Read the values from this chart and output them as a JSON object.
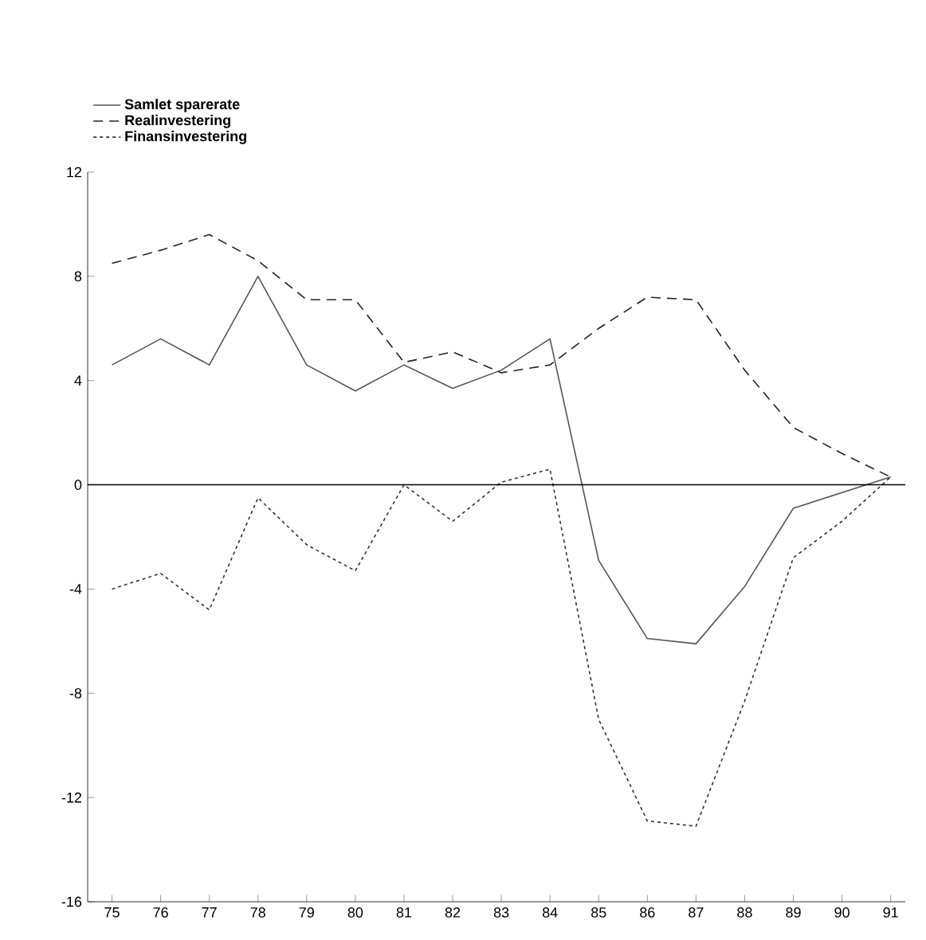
{
  "chart_data": {
    "type": "line",
    "categories": [
      "75",
      "76",
      "77",
      "78",
      "79",
      "80",
      "81",
      "82",
      "83",
      "84",
      "85",
      "86",
      "87",
      "88",
      "89",
      "90",
      "91"
    ],
    "series": [
      {
        "name": "Samlet sparerate",
        "color": "#555555",
        "line_style": "solid",
        "values": [
          4.6,
          5.6,
          4.6,
          8.0,
          4.6,
          3.6,
          4.6,
          3.7,
          4.4,
          5.6,
          -2.9,
          -5.9,
          -6.1,
          -3.9,
          -0.9,
          -0.3,
          0.3
        ]
      },
      {
        "name": "Realinvestering",
        "color": "#222222",
        "line_style": "dashed",
        "values": [
          8.5,
          9.0,
          9.6,
          8.6,
          7.1,
          7.1,
          4.7,
          5.1,
          4.3,
          4.6,
          6.0,
          7.2,
          7.1,
          4.4,
          2.2,
          1.2,
          0.3
        ]
      },
      {
        "name": "Finansinvestering",
        "color": "#333333",
        "line_style": "dotted",
        "values": [
          -4.0,
          -3.4,
          -4.8,
          -0.5,
          -2.3,
          -3.3,
          0.0,
          -1.4,
          0.1,
          0.6,
          -9.0,
          -12.9,
          -13.1,
          -8.3,
          -2.8,
          -1.4,
          0.3
        ]
      }
    ],
    "ylim": [
      -16,
      12
    ],
    "yticks": [
      -16,
      -12,
      -8,
      -4,
      0,
      4,
      8,
      12
    ],
    "ref_lines": [
      {
        "axis": "y",
        "value": 0,
        "color": "#000000"
      }
    ],
    "legend": "top left",
    "grid": false,
    "marker": "none"
  }
}
